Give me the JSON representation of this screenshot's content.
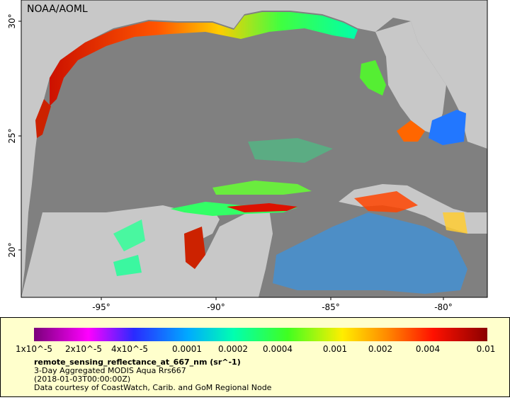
{
  "map": {
    "credit": "NOAA/AOML",
    "lat_labels": [
      "30°",
      "25°",
      "20°"
    ],
    "lon_labels": [
      "-95°",
      "-90°",
      "-85°",
      "-80°"
    ],
    "colorbar_labels": [
      "1x10^-5",
      "2x10^-5",
      "4x10^-5",
      "0.0001",
      "0.0002",
      "0.0004",
      "0.001",
      "0.002",
      "0.004",
      "0.01"
    ],
    "variable": "remote_sensing_reflectance_at_667_nm (sr^-1)",
    "description": "3-Day Aggregated MODIS Aqua Rrs667",
    "time": "(2018-01-03T00:00:00Z)",
    "courtesy": "Data courtesy of CoastWatch, Carib. and GoM Regional Node"
  }
}
